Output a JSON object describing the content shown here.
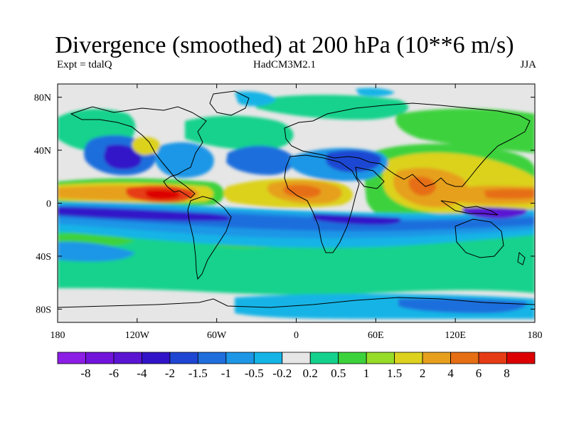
{
  "title": "Divergence (smoothed) at 200 hPa (10**6 m/s)",
  "subtitle_left": "Expt = tdalQ",
  "subtitle_center": "HadCM3M2.1",
  "subtitle_right": "JJA",
  "lat_ticks": [
    "80N",
    "40N",
    "0",
    "40S",
    "80S"
  ],
  "lon_ticks": [
    "180",
    "120W",
    "60W",
    "0",
    "60E",
    "120E",
    "180"
  ],
  "colorbar": {
    "colors": [
      "#8c1ee6",
      "#7214dc",
      "#5a14d2",
      "#3214c8",
      "#1e46d2",
      "#1e6edc",
      "#1e96e6",
      "#14b4e6",
      "#e6e6e6",
      "#14d28c",
      "#3cd23c",
      "#96dc28",
      "#dcd21e",
      "#e6a01e",
      "#e66e14",
      "#e63c14",
      "#dc0000"
    ],
    "labels": [
      "-8",
      "-6",
      "-4",
      "-2",
      "-1.5",
      "-1",
      "-0.5",
      "-0.2",
      "0.2",
      "0.5",
      "1",
      "1.5",
      "2",
      "4",
      "6",
      "8"
    ]
  }
}
